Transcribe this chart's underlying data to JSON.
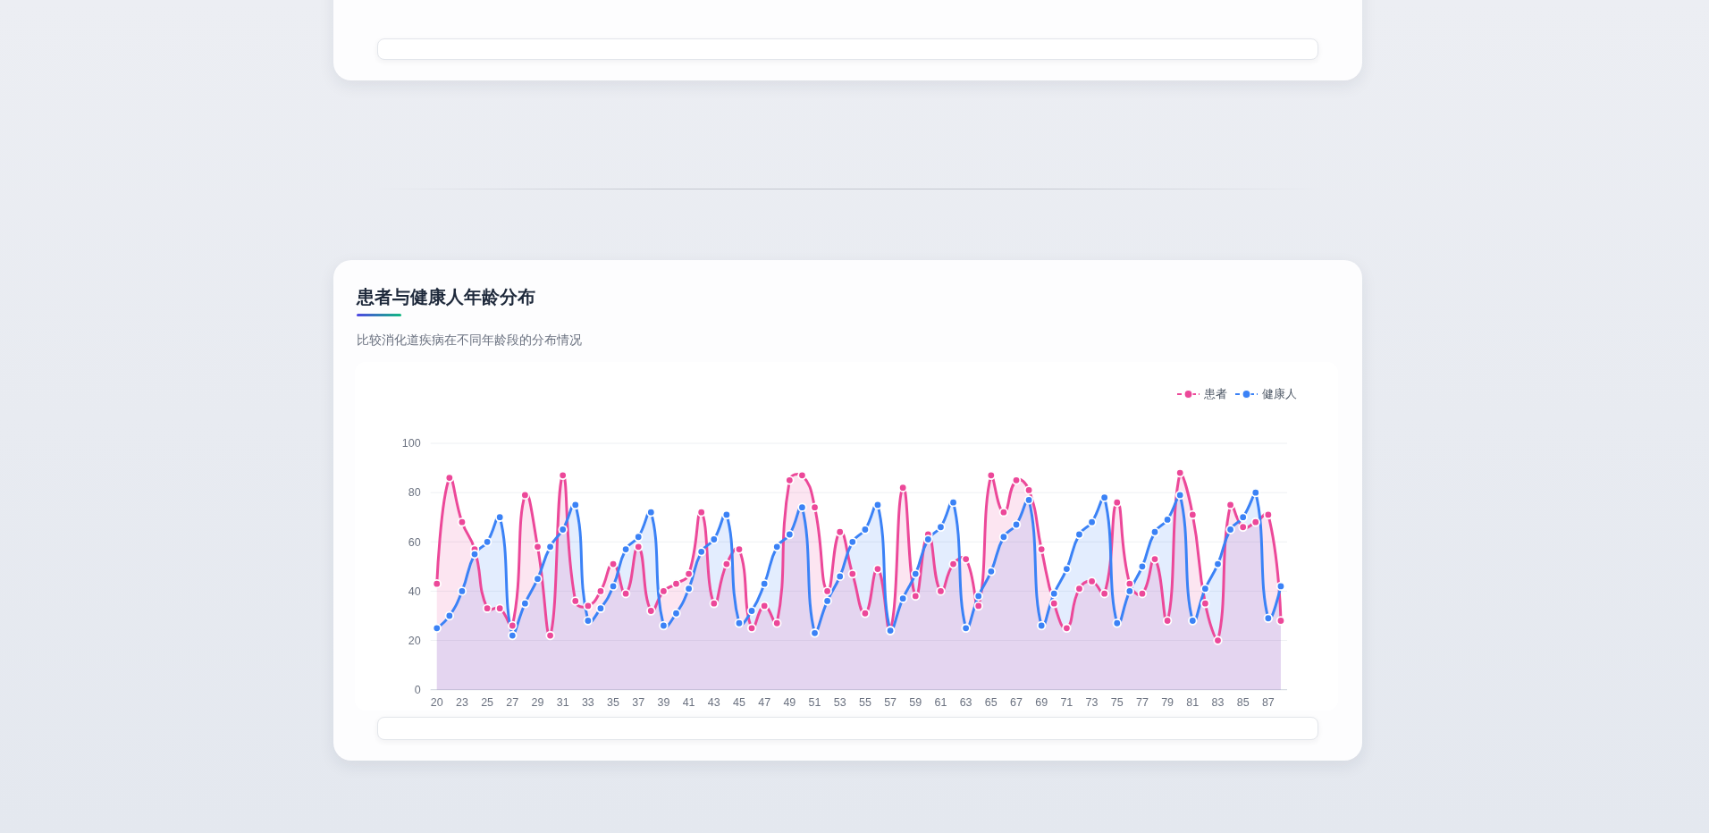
{
  "chart_data": {
    "type": "area",
    "title": "患者与健康人年龄分布",
    "subtitle": "比较消化道疾病在不同年龄段的分布情况",
    "categories": [
      "20",
      null,
      "23",
      null,
      "25",
      null,
      "27",
      null,
      "29",
      null,
      "31",
      null,
      "33",
      null,
      "35",
      null,
      "37",
      null,
      "39",
      null,
      "41",
      null,
      "43",
      null,
      "45",
      null,
      "47",
      null,
      "49",
      null,
      "51",
      null,
      "53",
      null,
      "55",
      null,
      "57",
      null,
      "59",
      null,
      "61",
      null,
      "63",
      null,
      "65",
      null,
      "67",
      null,
      "69",
      null,
      "71",
      null,
      "73",
      null,
      "75",
      null,
      "77",
      null,
      "79",
      null,
      "81",
      null,
      "83",
      null,
      "85",
      null,
      "87",
      null
    ],
    "series": [
      {
        "name": "患者",
        "color": "#ec4899",
        "values": [
          43,
          86,
          68,
          57,
          33,
          33,
          26,
          79,
          58,
          22,
          87,
          36,
          34,
          40,
          51,
          39,
          58,
          32,
          40,
          43,
          47,
          72,
          35,
          51,
          57,
          25,
          34,
          27,
          85,
          87,
          74,
          40,
          64,
          47,
          31,
          49,
          24,
          82,
          38,
          63,
          40,
          51,
          53,
          34,
          87,
          72,
          85,
          81,
          57,
          35,
          25,
          41,
          44,
          39,
          76,
          43,
          39,
          53,
          28,
          88,
          71,
          35,
          20,
          75,
          66,
          68,
          71,
          28
        ]
      },
      {
        "name": "健康人",
        "color": "#3b82f6",
        "values": [
          25,
          30,
          40,
          55,
          60,
          70,
          22,
          35,
          45,
          58,
          65,
          75,
          28,
          33,
          42,
          57,
          62,
          72,
          26,
          31,
          41,
          56,
          61,
          71,
          27,
          32,
          43,
          58,
          63,
          74,
          23,
          36,
          46,
          60,
          65,
          75,
          24,
          37,
          47,
          61,
          66,
          76,
          25,
          38,
          48,
          62,
          67,
          77,
          26,
          39,
          49,
          63,
          68,
          78,
          27,
          40,
          50,
          64,
          69,
          79,
          28,
          41,
          51,
          65,
          70,
          80,
          29,
          42
        ]
      }
    ],
    "ylim": [
      0,
      100
    ],
    "yticks": [
      0,
      20,
      40,
      60,
      80,
      100
    ],
    "grid": "y",
    "legend": "top right",
    "marker": "circle"
  }
}
